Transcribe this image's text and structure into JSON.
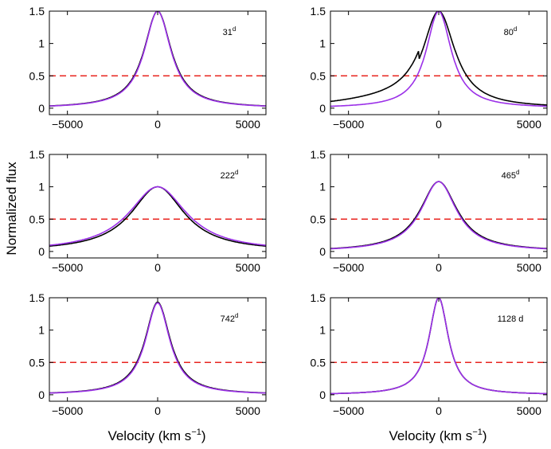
{
  "chart_data": {
    "type": "line",
    "layout": "3x2 grid of panels",
    "ylabel": "Normalized flux",
    "xlabel": "Velocity (km s",
    "xlabel_sup": "−1",
    "xlabel_close": ")",
    "xlim": [
      -6000,
      6000
    ],
    "ylim": [
      -0.1,
      1.5
    ],
    "x_ticks": [
      -5000,
      0,
      5000
    ],
    "x_tick_labels": [
      "−5000",
      "0",
      "5000"
    ],
    "y_ticks": [
      0,
      0.5,
      1,
      1.5
    ],
    "y_tick_labels": [
      "0",
      "0.5",
      "1",
      "1.5"
    ],
    "reference_line": {
      "y": 0.5,
      "style": "dashed",
      "color": "#e8241f"
    },
    "series_colors": {
      "line_a": "#000000",
      "line_b": "#9b30e8"
    },
    "panels": [
      {
        "epoch": "31",
        "epoch_sup": "d",
        "line_a": {
          "fwhm": 1850,
          "peak": 1.5
        },
        "line_b": {
          "fwhm": 1800,
          "peak": 1.5
        }
      },
      {
        "epoch": "80",
        "epoch_sup": "d",
        "line_a": {
          "fwhm": 2200,
          "peak": 1.5,
          "continuum_left": 0.15
        },
        "line_b": {
          "fwhm": 1700,
          "peak": 1.5
        }
      },
      {
        "epoch": "222",
        "epoch_sup": "d",
        "line_a": {
          "fwhm": 3600,
          "peak": 1.0
        },
        "line_b": {
          "fwhm": 3900,
          "peak": 1.0
        }
      },
      {
        "epoch": "465",
        "epoch_sup": "d",
        "line_a": {
          "fwhm": 2500,
          "peak": 1.08
        },
        "line_b": {
          "fwhm": 2400,
          "peak": 1.08
        }
      },
      {
        "epoch": "742",
        "epoch_sup": "d",
        "line_a": {
          "fwhm": 1700,
          "peak": 1.43
        },
        "line_b": {
          "fwhm": 1650,
          "peak": 1.42
        }
      },
      {
        "epoch": "1128 d",
        "epoch_sup": "",
        "line_a": {
          "fwhm": 1300,
          "peak": 1.5
        },
        "line_b": {
          "fwhm": 1300,
          "peak": 1.5
        }
      }
    ]
  }
}
